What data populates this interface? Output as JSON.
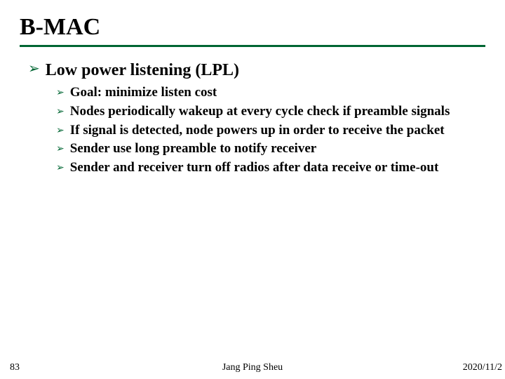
{
  "title": "B-MAC",
  "heading": "Low power listening (LPL)",
  "bullets": [
    "Goal: minimize listen cost",
    "Nodes periodically wakeup at every cycle check if preamble signals",
    "If signal is detected, node powers up in order to receive the packet",
    "Sender use long preamble to notify receiver",
    "Sender and receiver turn off radios after data receive or time-out"
  ],
  "footer": {
    "page": "83",
    "author": "Jang Ping Sheu",
    "date": "2020/11/2"
  },
  "colors": {
    "accent": "#006633",
    "text": "#000000",
    "background": "#ffffff"
  },
  "bullet_glyph": "➢"
}
